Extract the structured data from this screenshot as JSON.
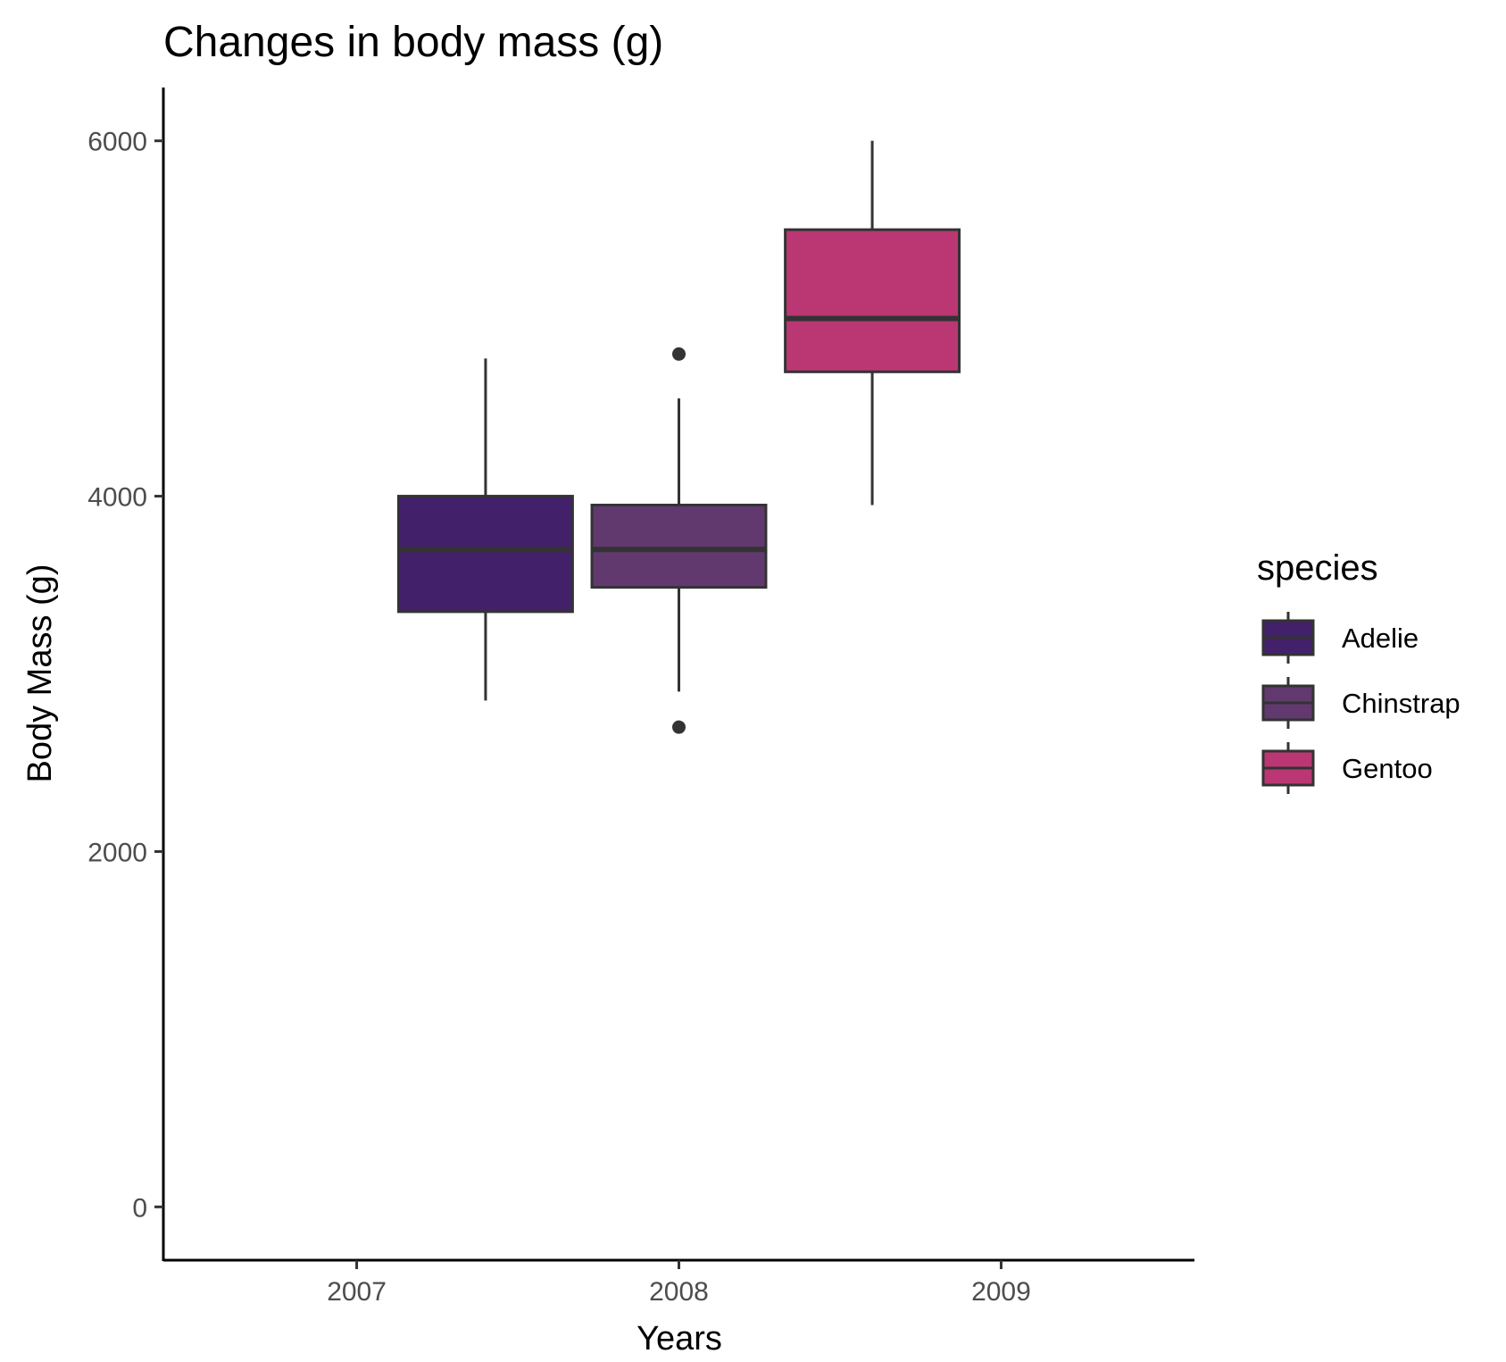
{
  "chart_data": {
    "type": "box",
    "title": "Changes in body mass (g)",
    "xlabel": "Years",
    "ylabel": "Body Mass (g)",
    "x_ticks": [
      "2007",
      "2008",
      "2009"
    ],
    "y_ticks": [
      0,
      2000,
      4000,
      6000
    ],
    "ylim": [
      -300,
      6300
    ],
    "xlim": [
      2006.4,
      2009.6
    ],
    "grid": false,
    "legend": {
      "title": "species",
      "position": "right",
      "entries": [
        "Adelie",
        "Chinstrap",
        "Gentoo"
      ]
    },
    "series": [
      {
        "name": "Adelie",
        "color": "#43206a",
        "x": 2007.4,
        "whisker_low": 2850,
        "q1": 3350,
        "median": 3700,
        "q3": 4000,
        "whisker_high": 4775,
        "outliers": []
      },
      {
        "name": "Chinstrap",
        "color": "#62396f",
        "x": 2008.0,
        "whisker_low": 2900,
        "q1": 3487,
        "median": 3700,
        "q3": 3950,
        "whisker_high": 4550,
        "outliers": [
          4800,
          2700
        ]
      },
      {
        "name": "Gentoo",
        "color": "#bb3773",
        "x": 2008.6,
        "whisker_low": 3950,
        "q1": 4700,
        "median": 5000,
        "q3": 5500,
        "whisker_high": 6000,
        "outliers": []
      }
    ]
  }
}
